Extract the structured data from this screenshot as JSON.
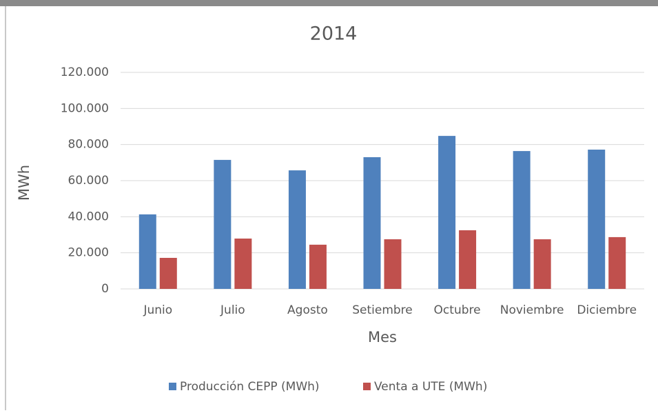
{
  "chart_data": {
    "type": "bar",
    "title": "2014",
    "x_label": "Mes",
    "y_label": "MWh",
    "categories": [
      "Junio",
      "Julio",
      "Agosto",
      "Setiembre",
      "Octubre",
      "Noviembre",
      "Diciembre"
    ],
    "series": [
      {
        "name": "Producción CEPP (MWh)",
        "color": "#4f81bd",
        "values": [
          41300,
          71500,
          65700,
          73000,
          84800,
          76400,
          77200
        ]
      },
      {
        "name": "Venta a UTE (MWh)",
        "color": "#c0504d",
        "values": [
          17200,
          27900,
          24500,
          27500,
          32500,
          27500,
          28700
        ]
      }
    ],
    "ylim": [
      0,
      120000
    ],
    "yticks": [
      0,
      {
        "value": 20000,
        "label": "20.000"
      },
      {
        "value": 40000,
        "label": "40.000"
      },
      {
        "value": 60000,
        "label": "60.000"
      },
      {
        "value": 80000,
        "label": "80.000"
      },
      {
        "value": 100000,
        "label": "100.000"
      },
      {
        "value": 120000,
        "label": "120.000"
      }
    ],
    "grid": true,
    "legend": "bottom"
  }
}
